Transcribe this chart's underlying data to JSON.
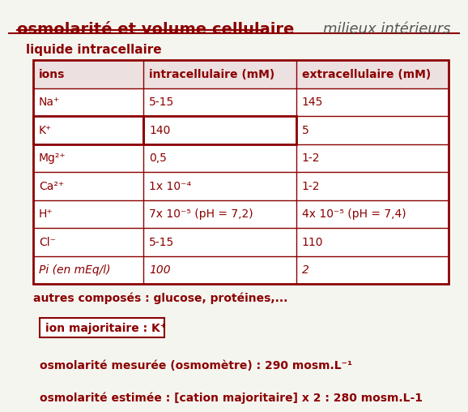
{
  "title_left": "osmolarité et volume cellulaire",
  "title_right": "milieux intérieurs",
  "subtitle": "liquide intracellaire",
  "table_headers": [
    "ions",
    "intracellulaire (mM)",
    "extracellulaire (mM)"
  ],
  "table_rows": [
    [
      "Na⁺",
      "5-15",
      "145"
    ],
    [
      "K⁺",
      "140",
      "5"
    ],
    [
      "Mg²⁺",
      "0,5",
      "1-2"
    ],
    [
      "Ca²⁺",
      "1x 10⁻⁴",
      "1-2"
    ],
    [
      "H⁺",
      "7x 10⁻⁵ (pH = 7,2)",
      "4x 10⁻⁵ (pH = 7,4)"
    ],
    [
      "Cl⁻",
      "5-15",
      "110"
    ],
    [
      "Pi (en mEq/l)",
      "100",
      "2"
    ]
  ],
  "note1": "autres composés : glucose, protéines,...",
  "note2": "ion majoritaire : K⁺",
  "note3": "osmolarité mesurée (osmomètre) : 290 mosm.L⁻¹",
  "note4": "osmolarité estimée : [cation majoritaire] x 2 : 280 mosm.L-1",
  "color_dark": "#8B0000",
  "bg_color": "#F5F5F0",
  "table_border_color": "#8B0000",
  "highlight_row": 1
}
